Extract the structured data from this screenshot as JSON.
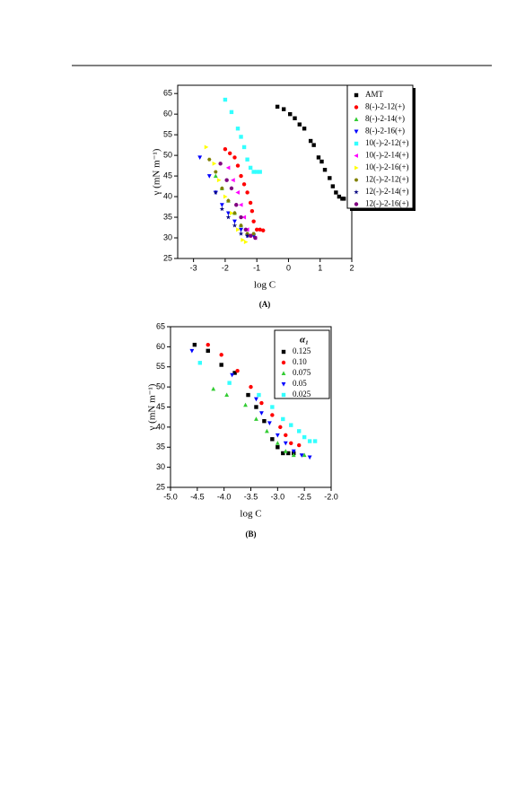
{
  "chart_data": [
    {
      "type": "scatter",
      "xlabel": "log C",
      "ylabel": "γ (mN m⁻¹)",
      "caption": "(A)",
      "xlim": [
        -3.5,
        2
      ],
      "ylim": [
        25,
        67
      ],
      "xticks": [
        -3,
        -2,
        -1,
        0,
        1,
        2
      ],
      "yticks": [
        25,
        30,
        35,
        40,
        45,
        50,
        55,
        60,
        65
      ],
      "legend": "upper right",
      "series": [
        {
          "name": "AMT",
          "color": "#000000",
          "marker": "square",
          "x": [
            -0.35,
            -0.15,
            0.05,
            0.2,
            0.35,
            0.5,
            0.7,
            0.8,
            0.95,
            1.05,
            1.15,
            1.3,
            1.4,
            1.5,
            1.6,
            1.7,
            1.75
          ],
          "values": [
            61.8,
            61.2,
            60,
            59,
            57.5,
            56.5,
            53.5,
            52.5,
            49.5,
            48.5,
            46.5,
            44.5,
            42.5,
            41,
            40,
            39.5,
            39.5
          ]
        },
        {
          "name": "8(-)-2-12(+)",
          "color": "#ff0000",
          "marker": "circle",
          "x": [
            -2.0,
            -1.85,
            -1.7,
            -1.6,
            -1.5,
            -1.4,
            -1.3,
            -1.2,
            -1.15,
            -1.1,
            -1.0,
            -0.9,
            -0.8
          ],
          "values": [
            51.5,
            50.5,
            49.5,
            47.5,
            45,
            43,
            41,
            38.5,
            36.5,
            34,
            32,
            32,
            31.8
          ]
        },
        {
          "name": "8(-)-2-14(+)",
          "color": "#33cc33",
          "marker": "triangle-up",
          "x": [
            -2.3,
            -2.1,
            -1.9,
            -1.7,
            -1.5,
            -1.3,
            -1.1
          ],
          "values": [
            45,
            42,
            39,
            36,
            33,
            31,
            30.8
          ]
        },
        {
          "name": "8(-)-2-16(+)",
          "color": "#0000ff",
          "marker": "triangle-down",
          "x": [
            -2.8,
            -2.5,
            -2.3,
            -2.1,
            -1.9,
            -1.7,
            -1.5,
            -1.3,
            -1.1
          ],
          "values": [
            49.5,
            45,
            41,
            38,
            36,
            34,
            32,
            30.5,
            30.5
          ]
        },
        {
          "name": "10(-)-2-12(+)",
          "color": "#33ffff",
          "marker": "square",
          "x": [
            -2.0,
            -1.8,
            -1.6,
            -1.5,
            -1.4,
            -1.3,
            -1.2,
            -1.1,
            -1.0,
            -0.9
          ],
          "values": [
            63.5,
            60.5,
            56.5,
            54.5,
            52,
            49,
            47,
            46,
            46,
            46
          ]
        },
        {
          "name": "10(-)-2-14(+)",
          "color": "#ff00ff",
          "marker": "triangle-left",
          "x": [
            -1.9,
            -1.75,
            -1.6,
            -1.5,
            -1.4,
            -1.3,
            -1.2,
            -1.05
          ],
          "values": [
            47,
            44,
            41,
            38,
            35,
            32,
            30.5,
            30
          ]
        },
        {
          "name": "10(-)-2-16(+)",
          "color": "#ffff00",
          "marker": "triangle-right",
          "x": [
            -2.6,
            -2.35,
            -2.2,
            -2.0,
            -1.8,
            -1.6,
            -1.45,
            -1.35
          ],
          "values": [
            52,
            48,
            44,
            40,
            36,
            32,
            29.5,
            29
          ]
        },
        {
          "name": "12(-)-2-12(+)",
          "color": "#808000",
          "marker": "hexagon",
          "x": [
            -2.5,
            -2.3,
            -2.1,
            -1.9,
            -1.7,
            -1.5,
            -1.3,
            -1.1
          ],
          "values": [
            49,
            46,
            42,
            39,
            36,
            33,
            31,
            31
          ]
        },
        {
          "name": "12(-)-2-14(+)",
          "color": "#000080",
          "marker": "star",
          "x": [
            -2.3,
            -2.1,
            -1.9,
            -1.7,
            -1.5,
            -1.3
          ],
          "values": [
            41,
            37,
            35,
            33,
            31,
            30.5
          ]
        },
        {
          "name": "12(-)-2-16(+)",
          "color": "#800080",
          "marker": "circle",
          "x": [
            -2.15,
            -1.95,
            -1.8,
            -1.65,
            -1.5,
            -1.35,
            -1.2,
            -1.05
          ],
          "values": [
            48,
            44,
            42,
            38,
            35,
            32,
            30.5,
            30
          ]
        }
      ]
    },
    {
      "type": "scatter",
      "xlabel": "log C",
      "ylabel": "γ (mN m⁻¹)",
      "caption": "(B)",
      "legend_title": "α₁",
      "xlim": [
        -5,
        -2
      ],
      "ylim": [
        25,
        65
      ],
      "xticks": [
        {
          "value": -5,
          "label": "-5.0"
        },
        {
          "value": -4.5,
          "label": "-4.5"
        },
        {
          "value": -4,
          "label": "-4.0"
        },
        {
          "value": -3.5,
          "label": "-3.5"
        },
        {
          "value": -3,
          "label": "-3.0"
        },
        {
          "value": -2.5,
          "label": "-2.5"
        },
        {
          "value": -2,
          "label": "-2.0"
        }
      ],
      "yticks": [
        25,
        30,
        35,
        40,
        45,
        50,
        55,
        60,
        65
      ],
      "legend": "upper right",
      "series": [
        {
          "name": "0.125",
          "color": "#000000",
          "marker": "square",
          "x": [
            -4.55,
            -4.3,
            -4.05,
            -3.8,
            -3.55,
            -3.4,
            -3.25,
            -3.1,
            -3.0,
            -2.9,
            -2.8,
            -2.7
          ],
          "values": [
            60.5,
            59,
            55.5,
            53.5,
            48,
            45,
            41.5,
            37,
            35,
            33.5,
            33.5,
            33.5
          ]
        },
        {
          "name": "0.10",
          "color": "#ff0000",
          "marker": "circle",
          "x": [
            -4.3,
            -4.05,
            -3.75,
            -3.5,
            -3.3,
            -3.1,
            -2.95,
            -2.85,
            -2.75,
            -2.6
          ],
          "values": [
            60.5,
            58,
            54,
            50,
            46,
            43,
            40,
            38,
            36,
            35.5
          ]
        },
        {
          "name": "0.075",
          "color": "#33cc33",
          "marker": "triangle-up",
          "x": [
            -4.2,
            -3.95,
            -3.6,
            -3.4,
            -3.2,
            -3.0,
            -2.85,
            -2.7,
            -2.5
          ],
          "values": [
            49.5,
            48,
            45.5,
            42,
            39,
            36,
            34,
            33,
            33
          ]
        },
        {
          "name": "0.05",
          "color": "#0000ff",
          "marker": "triangle-down",
          "x": [
            -4.6,
            -3.85,
            -3.4,
            -3.3,
            -3.15,
            -3.0,
            -2.85,
            -2.7,
            -2.55,
            -2.4
          ],
          "values": [
            59,
            53,
            47,
            43.5,
            41,
            38,
            36,
            34,
            33,
            32.5
          ]
        },
        {
          "name": "0.025",
          "color": "#33ffff",
          "marker": "square",
          "x": [
            -4.45,
            -3.9,
            -3.35,
            -3.1,
            -2.9,
            -2.75,
            -2.6,
            -2.5,
            -2.4,
            -2.3
          ],
          "values": [
            56,
            51,
            48,
            45,
            42,
            40.5,
            39,
            37.5,
            36.5,
            36.5
          ]
        }
      ]
    }
  ]
}
